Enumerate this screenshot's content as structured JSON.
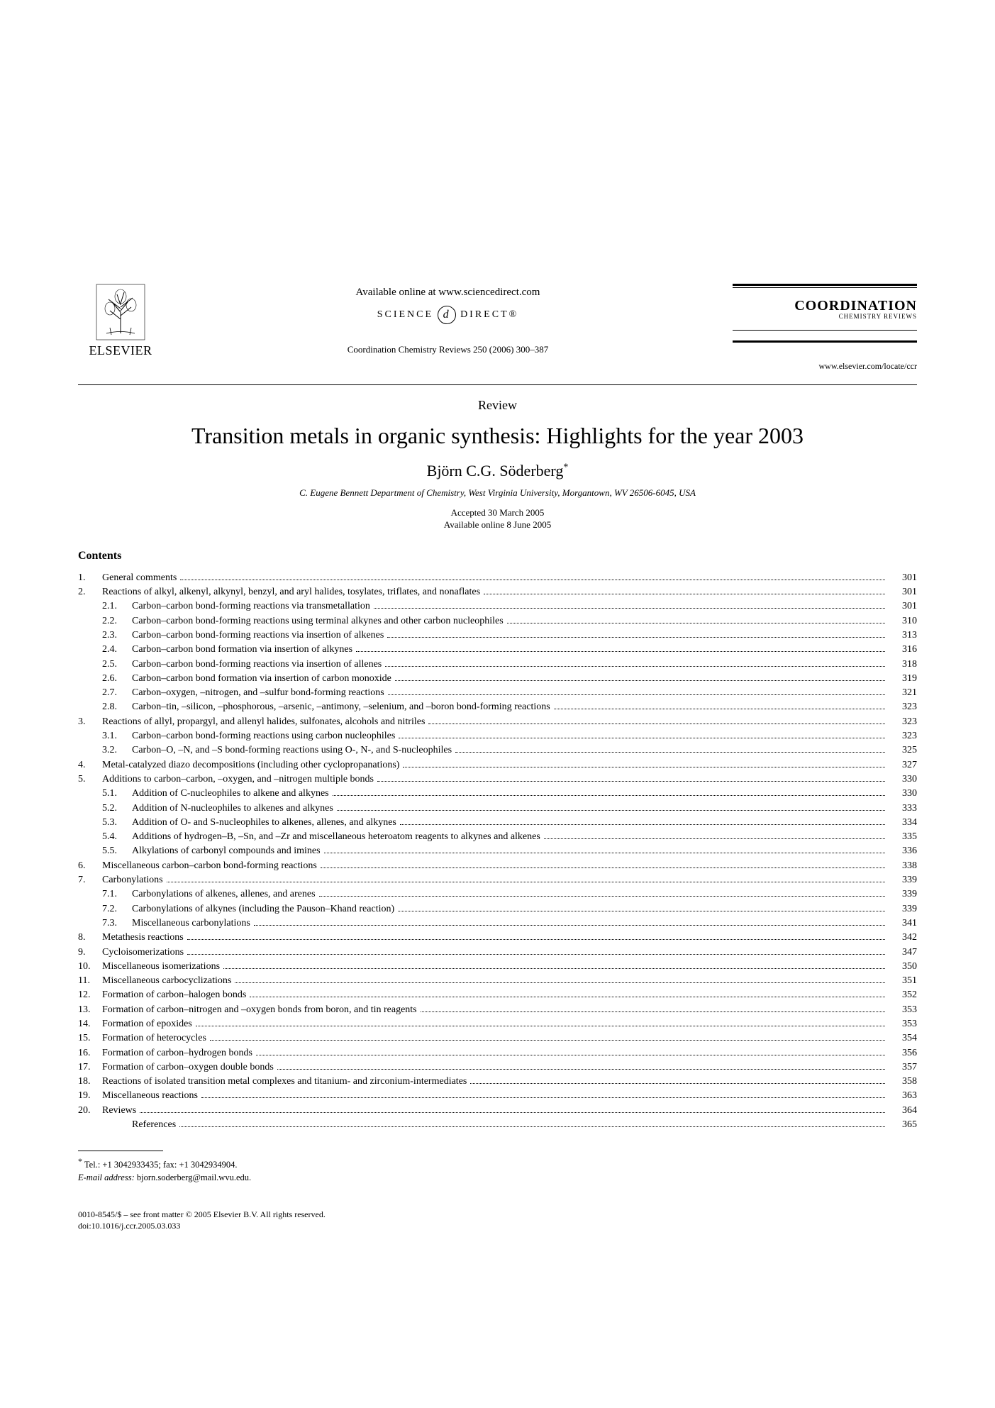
{
  "header": {
    "publisher": "ELSEVIER",
    "available_line": "Available online at www.sciencedirect.com",
    "sd_left": "SCIENCE",
    "sd_right": "DIRECT®",
    "sd_glyph": "d",
    "citation": "Coordination Chemistry Reviews 250 (2006) 300–387",
    "journal_title": "COORDINATION",
    "journal_sub": "CHEMISTRY REVIEWS",
    "journal_url": "www.elsevier.com/locate/ccr"
  },
  "article": {
    "doctype": "Review",
    "title": "Transition metals in organic synthesis: Highlights for the year 2003",
    "author": "Björn C.G. Söderberg",
    "author_mark": "*",
    "affiliation": "C. Eugene Bennett Department of Chemistry, West Virginia University, Morgantown, WV 26506-6045, USA",
    "accepted": "Accepted 30 March 2005",
    "online": "Available online 8 June 2005"
  },
  "contents_heading": "Contents",
  "toc": [
    {
      "n": "1.",
      "t": "General comments",
      "p": "301"
    },
    {
      "n": "2.",
      "t": "Reactions of alkyl, alkenyl, alkynyl, benzyl, and aryl halides, tosylates, triflates, and nonaflates",
      "p": "301"
    },
    {
      "n": "2.1.",
      "t": "Carbon–carbon bond-forming reactions via transmetallation",
      "p": "301",
      "sub": true
    },
    {
      "n": "2.2.",
      "t": "Carbon–carbon bond-forming reactions using terminal alkynes and other carbon nucleophiles",
      "p": "310",
      "sub": true
    },
    {
      "n": "2.3.",
      "t": "Carbon–carbon bond-forming reactions via insertion of alkenes",
      "p": "313",
      "sub": true
    },
    {
      "n": "2.4.",
      "t": "Carbon–carbon bond formation via insertion of alkynes",
      "p": "316",
      "sub": true
    },
    {
      "n": "2.5.",
      "t": "Carbon–carbon bond-forming reactions via insertion of allenes",
      "p": "318",
      "sub": true
    },
    {
      "n": "2.6.",
      "t": "Carbon–carbon bond formation via insertion of carbon monoxide",
      "p": "319",
      "sub": true
    },
    {
      "n": "2.7.",
      "t": "Carbon–oxygen, –nitrogen, and –sulfur bond-forming reactions",
      "p": "321",
      "sub": true
    },
    {
      "n": "2.8.",
      "t": "Carbon–tin, –silicon, –phosphorous, –arsenic, –antimony, –selenium, and –boron bond-forming reactions",
      "p": "323",
      "sub": true
    },
    {
      "n": "3.",
      "t": "Reactions of allyl, propargyl, and allenyl halides, sulfonates, alcohols and nitriles",
      "p": "323"
    },
    {
      "n": "3.1.",
      "t": "Carbon–carbon bond-forming reactions using carbon nucleophiles",
      "p": "323",
      "sub": true
    },
    {
      "n": "3.2.",
      "t": "Carbon–O, –N, and –S bond-forming reactions using O-, N-, and S-nucleophiles",
      "p": "325",
      "sub": true
    },
    {
      "n": "4.",
      "t": "Metal-catalyzed diazo decompositions (including other cyclopropanations)",
      "p": "327"
    },
    {
      "n": "5.",
      "t": "Additions to carbon–carbon, –oxygen, and –nitrogen multiple bonds",
      "p": "330"
    },
    {
      "n": "5.1.",
      "t": "Addition of C-nucleophiles to alkene and alkynes",
      "p": "330",
      "sub": true
    },
    {
      "n": "5.2.",
      "t": "Addition of N-nucleophiles to alkenes and alkynes",
      "p": "333",
      "sub": true
    },
    {
      "n": "5.3.",
      "t": "Addition of O- and S-nucleophiles to alkenes, allenes, and alkynes",
      "p": "334",
      "sub": true
    },
    {
      "n": "5.4.",
      "t": "Additions of hydrogen–B, –Sn, and –Zr and miscellaneous heteroatom reagents to alkynes and alkenes",
      "p": "335",
      "sub": true
    },
    {
      "n": "5.5.",
      "t": "Alkylations of carbonyl compounds and imines",
      "p": "336",
      "sub": true
    },
    {
      "n": "6.",
      "t": "Miscellaneous carbon–carbon bond-forming reactions",
      "p": "338"
    },
    {
      "n": "7.",
      "t": "Carbonylations",
      "p": "339"
    },
    {
      "n": "7.1.",
      "t": "Carbonylations of alkenes, allenes, and arenes",
      "p": "339",
      "sub": true
    },
    {
      "n": "7.2.",
      "t": "Carbonylations of alkynes (including the Pauson–Khand reaction)",
      "p": "339",
      "sub": true
    },
    {
      "n": "7.3.",
      "t": "Miscellaneous carbonylations",
      "p": "341",
      "sub": true
    },
    {
      "n": "8.",
      "t": "Metathesis reactions",
      "p": "342"
    },
    {
      "n": "9.",
      "t": "Cycloisomerizations",
      "p": "347"
    },
    {
      "n": "10.",
      "t": "Miscellaneous isomerizations",
      "p": "350"
    },
    {
      "n": "11.",
      "t": "Miscellaneous carbocyclizations",
      "p": "351"
    },
    {
      "n": "12.",
      "t": "Formation of carbon–halogen bonds",
      "p": "352"
    },
    {
      "n": "13.",
      "t": "Formation of carbon–nitrogen and –oxygen bonds from boron, and tin reagents",
      "p": "353"
    },
    {
      "n": "14.",
      "t": "Formation of epoxides",
      "p": "353"
    },
    {
      "n": "15.",
      "t": "Formation of heterocycles",
      "p": "354"
    },
    {
      "n": "16.",
      "t": "Formation of carbon–hydrogen bonds",
      "p": "356"
    },
    {
      "n": "17.",
      "t": "Formation of carbon–oxygen double bonds",
      "p": "357"
    },
    {
      "n": "18.",
      "t": "Reactions of isolated transition metal complexes and titanium- and zirconium-intermediates",
      "p": "358"
    },
    {
      "n": "19.",
      "t": "Miscellaneous reactions",
      "p": "363"
    },
    {
      "n": "20.",
      "t": "Reviews",
      "p": "364"
    },
    {
      "n": "",
      "t": "References",
      "p": "365",
      "ref": true
    }
  ],
  "footnote": {
    "mark": "*",
    "contact": "Tel.: +1 3042933435; fax: +1 3042934904.",
    "email_label": "E-mail address:",
    "email": "bjorn.soderberg@mail.wvu.edu."
  },
  "bottom": {
    "line1": "0010-8545/$ – see front matter © 2005 Elsevier B.V. All rights reserved.",
    "line2": "doi:10.1016/j.ccr.2005.03.033"
  }
}
